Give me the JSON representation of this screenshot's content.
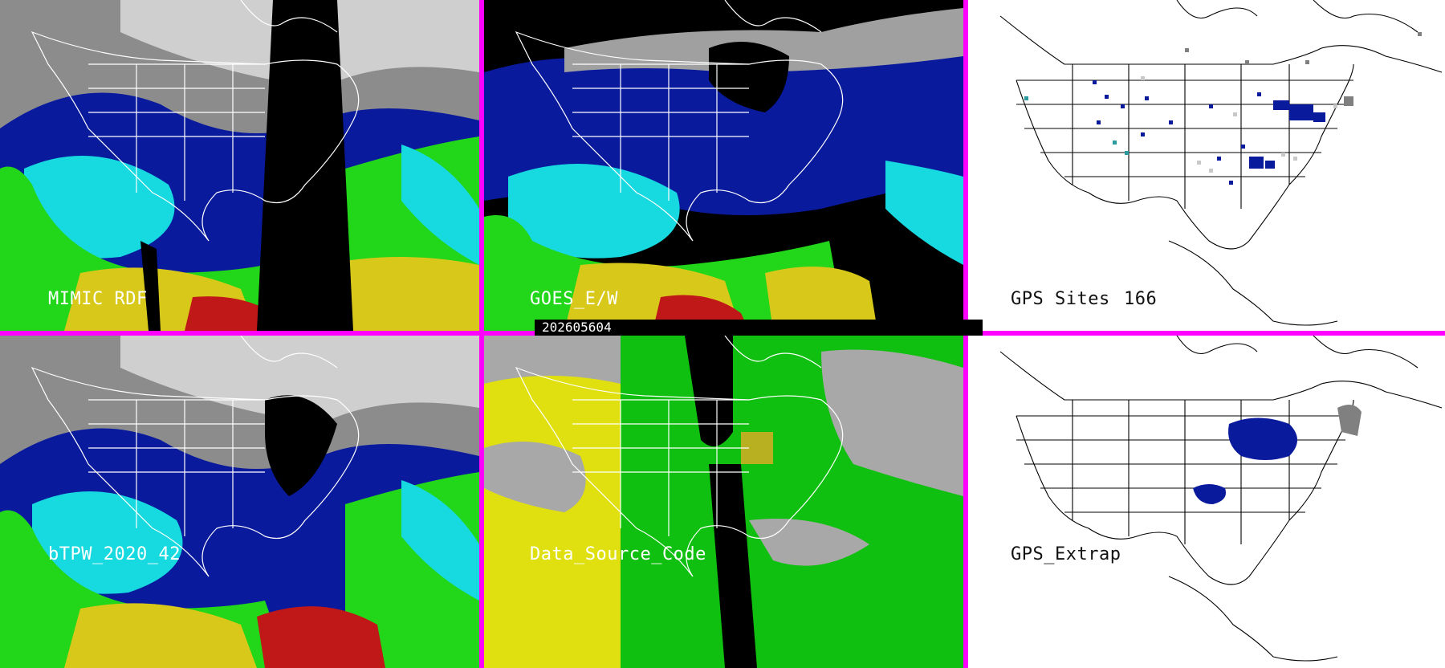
{
  "panels": {
    "mimic": {
      "label": "MIMIC RDF"
    },
    "goes": {
      "label": "GOES_E/W"
    },
    "gps_sites": {
      "label": "GPS Sites",
      "count": "166"
    },
    "btpw": {
      "label": "bTPW_2020_42"
    },
    "data_source": {
      "label": "Data_Source_Code"
    },
    "gps_extrap": {
      "label": "GPS_Extrap"
    }
  },
  "timestamp": "202605604",
  "colors": {
    "separator": "#ff00ff",
    "pw_dry": "#0a1a9c",
    "pw_mid": "#17d9e0",
    "pw_wet": "#22d61a",
    "pw_high": "#d8c81a",
    "pw_max": "#c01818",
    "source_yellow": "#e0e010",
    "source_green": "#10c010",
    "source_gray": "#a8a8a8"
  },
  "icons": {
    "overlay": "map-outline"
  }
}
